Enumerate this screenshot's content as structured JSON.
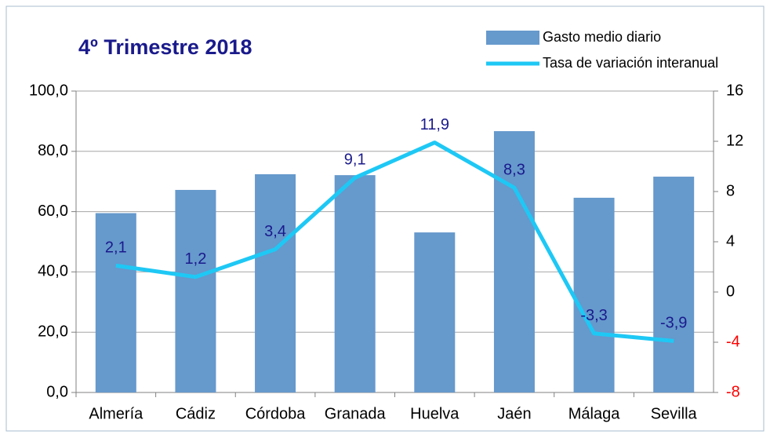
{
  "chart_data": {
    "type": "bar_line",
    "title": "4º Trimestre 2018",
    "categories": [
      "Almería",
      "Cádiz",
      "Córdoba",
      "Granada",
      "Huelva",
      "Jaén",
      "Málaga",
      "Sevilla"
    ],
    "series": [
      {
        "name": "Gasto medio diario",
        "type": "bar",
        "color": "#6699cc",
        "values": [
          59.5,
          67.2,
          72.4,
          72.1,
          53.1,
          86.7,
          64.6,
          71.6
        ]
      },
      {
        "name": "Tasa de variación interanual",
        "type": "line",
        "axis": "y2",
        "color": "#1ec8f5",
        "values": [
          2.1,
          1.2,
          3.4,
          9.1,
          11.9,
          8.3,
          -3.3,
          -3.9
        ],
        "value_labels": [
          "2,1",
          "1,2",
          "3,4",
          "9,1",
          "11,9",
          "8,3",
          "-3,3",
          "-3,9"
        ]
      }
    ],
    "ylim": [
      0,
      100
    ],
    "yticks": [
      {
        "value": 0,
        "label": "0,0"
      },
      {
        "value": 20,
        "label": "20,0"
      },
      {
        "value": 40,
        "label": "40,0"
      },
      {
        "value": 60,
        "label": "60,0"
      },
      {
        "value": 80,
        "label": "80,0"
      },
      {
        "value": 100,
        "label": "100,0"
      }
    ],
    "y2lim": [
      -8,
      16
    ],
    "y2ticks": [
      -8,
      -4,
      0,
      4,
      8,
      12,
      16
    ],
    "negative_tick_color": "#ff0000",
    "grid": true,
    "legend": "top-right"
  }
}
